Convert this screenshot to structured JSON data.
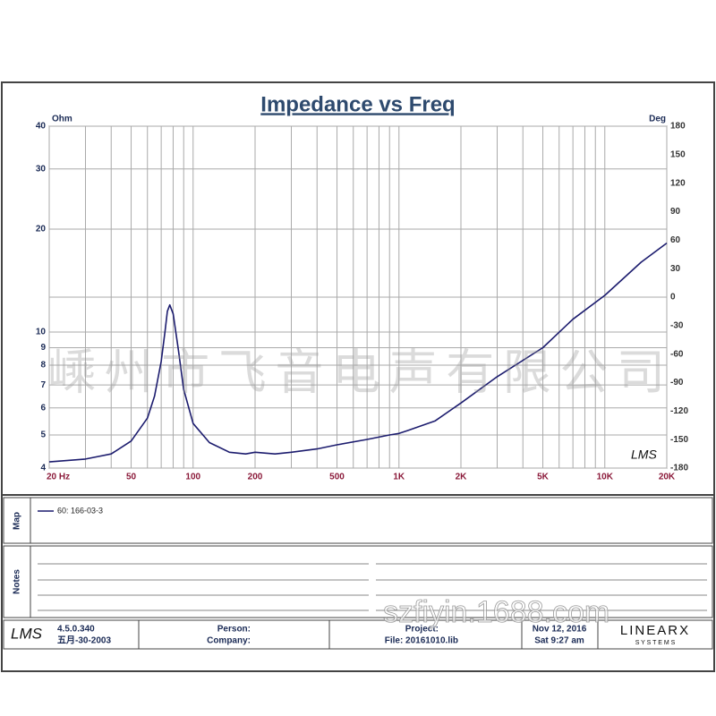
{
  "chart_data": {
    "type": "line",
    "title": "Impedance vs Freq",
    "y_label": "Ohm",
    "y2_label": "Deg",
    "x": [
      20,
      30,
      40,
      50,
      60,
      65,
      70,
      73,
      75,
      77,
      80,
      85,
      90,
      100,
      120,
      150,
      180,
      200,
      250,
      300,
      400,
      500,
      700,
      900,
      1000,
      1100,
      1500,
      2000,
      3000,
      5000,
      7000,
      10000,
      15000,
      20000
    ],
    "series": [
      {
        "name": "60: 166-03-3",
        "color": "#1c1c6e",
        "values": [
          4.17,
          4.25,
          4.4,
          4.8,
          5.6,
          6.5,
          8.2,
          10,
          11.5,
          12,
          11.3,
          8.8,
          6.8,
          5.4,
          4.75,
          4.45,
          4.4,
          4.45,
          4.4,
          4.45,
          4.55,
          4.68,
          4.85,
          5.0,
          5.05,
          5.15,
          5.5,
          6.2,
          7.4,
          9.0,
          10.9,
          12.8,
          16.0,
          18.2
        ]
      }
    ],
    "xscale": "log",
    "xlim": [
      20,
      20000
    ],
    "xticks": [
      {
        "value": 20,
        "label": "20 Hz"
      },
      50,
      100,
      200,
      500,
      {
        "value": 1000,
        "label": "1K"
      },
      {
        "value": 2000,
        "label": "2K"
      },
      {
        "value": 5000,
        "label": "5K"
      },
      {
        "value": 10000,
        "label": "10K"
      },
      {
        "value": 20000,
        "label": "20K"
      }
    ],
    "xgrid": [
      20,
      30,
      40,
      50,
      60,
      70,
      80,
      90,
      100,
      200,
      300,
      400,
      500,
      600,
      700,
      800,
      900,
      1000,
      2000,
      3000,
      4000,
      5000,
      6000,
      7000,
      8000,
      9000,
      10000,
      20000
    ],
    "yscale": "log",
    "ylim": [
      4,
      40
    ],
    "yticks": [
      4,
      5,
      6,
      7,
      8,
      9,
      10,
      20,
      30,
      40
    ],
    "y2lim": [
      -180,
      180
    ],
    "y2ticks": [
      -180,
      -150,
      -120,
      -90,
      -60,
      -30,
      0,
      30,
      60,
      90,
      120,
      150,
      180
    ],
    "y2grid": [
      0
    ],
    "grid": true,
    "logo": "LMS"
  },
  "panels": {
    "map_label": "Map",
    "notes_label": "Notes"
  },
  "footer": {
    "logo": "LMS",
    "version": "4.5.0.340",
    "date": "五月-30-2003",
    "person": "Person:",
    "company": "Company:",
    "project": "Project:",
    "file": "File: 20161010.lib",
    "print_date": "Nov 12, 2016",
    "print_time": "Sat  9:27 am",
    "brand": "LINEARX",
    "brand_sub": "S Y S T E M S"
  },
  "watermarks": [
    "嵊州市飞音电声有限公司",
    "szfiyin.1688.com"
  ]
}
